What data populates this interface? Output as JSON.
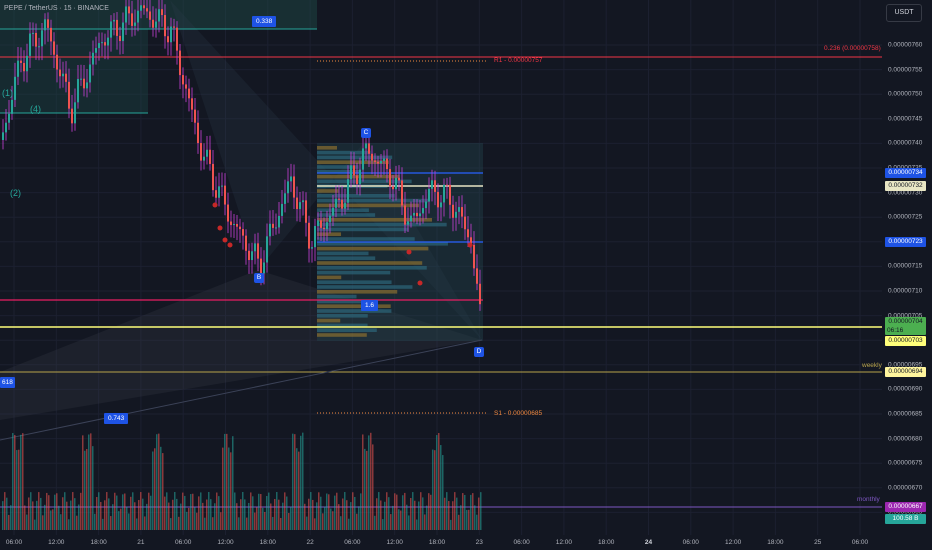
{
  "header": {
    "title": "PEPE / TetherUS · 15 · BINANCE"
  },
  "toolbar": {
    "currency": "USDT"
  },
  "price_axis": {
    "ticks": [
      "0.00000760",
      "0.00000755",
      "0.00000750",
      "0.00000745",
      "0.00000740",
      "0.00000735",
      "0.00000730",
      "0.00000725",
      "0.00000720",
      "0.00000715",
      "0.00000710",
      "0.00000705",
      "0.00000700",
      "0.00000695",
      "0.00000690",
      "0.00000685",
      "0.00000680",
      "0.00000675",
      "0.00000670",
      "0.00000665"
    ],
    "tags": [
      {
        "name": "price-tag-734",
        "text": "0.00000734",
        "bg": "#1e53e5",
        "fg": "#ffffff"
      },
      {
        "name": "price-tag-732",
        "text": "0.00000732",
        "bg": "#e8e6c4",
        "fg": "#131722"
      },
      {
        "name": "price-tag-723",
        "text": "0.00000723",
        "bg": "#1e53e5",
        "fg": "#ffffff"
      },
      {
        "name": "price-tag-current",
        "text": "0.00000704",
        "sub": "06:16",
        "bg": "#4caf50",
        "fg": "#131722"
      },
      {
        "name": "price-tag-703",
        "text": "0.00000703",
        "bg": "#ffff7a",
        "fg": "#131722"
      },
      {
        "name": "price-tag-weekly",
        "text": "0.00000694",
        "bg": "#fff59d",
        "fg": "#131722"
      },
      {
        "name": "price-tag-monthly",
        "text": "0.00000667",
        "bg": "#9c27b0",
        "fg": "#ffffff"
      },
      {
        "name": "volume-tag",
        "text": "100.58 B",
        "bg": "#26a69a",
        "fg": "#ffffff"
      }
    ]
  },
  "time_axis": {
    "labels": [
      {
        "text": "06:00",
        "bold": false
      },
      {
        "text": "12:00",
        "bold": false
      },
      {
        "text": "18:00",
        "bold": false
      },
      {
        "text": "21",
        "bold": false
      },
      {
        "text": "06:00",
        "bold": false
      },
      {
        "text": "12:00",
        "bold": false
      },
      {
        "text": "18:00",
        "bold": false
      },
      {
        "text": "22",
        "bold": false
      },
      {
        "text": "06:00",
        "bold": false
      },
      {
        "text": "12:00",
        "bold": false
      },
      {
        "text": "18:00",
        "bold": false
      },
      {
        "text": "23",
        "bold": false
      },
      {
        "text": "06:00",
        "bold": false
      },
      {
        "text": "12:00",
        "bold": false
      },
      {
        "text": "18:00",
        "bold": false
      },
      {
        "text": "24",
        "bold": true
      },
      {
        "text": "06:00",
        "bold": false
      },
      {
        "text": "12:00",
        "bold": false
      },
      {
        "text": "18:00",
        "bold": false
      },
      {
        "text": "25",
        "bold": false
      },
      {
        "text": "06:00",
        "bold": false
      }
    ]
  },
  "annotations": {
    "r1": "R1 - 0.00000757",
    "s1": "S1 - 0.00000685",
    "fib": "0.236 (0.00000758)",
    "weekly": "weekly",
    "monthly": "monthly",
    "fib_338": "0.338",
    "fib_16": "1.6",
    "fib_743": "0.743",
    "fib_618": "618",
    "wave_1": "(1)",
    "wave_2": "(2)",
    "wave_4": "(4)",
    "pt_b": "B",
    "pt_c": "C",
    "pt_d": "D"
  },
  "colors": {
    "bg": "#131722",
    "up": "#26a69a",
    "down": "#ef5350",
    "wick_purple": "#c940d8",
    "r1_line": "#f23645",
    "fib_line": "#f23645",
    "weekly_line": "#b7a34a",
    "monthly_line": "#7e57c2",
    "pink_line": "#e91e63",
    "yellow_line": "#ffff7a",
    "blue_line": "#2962ff"
  }
}
